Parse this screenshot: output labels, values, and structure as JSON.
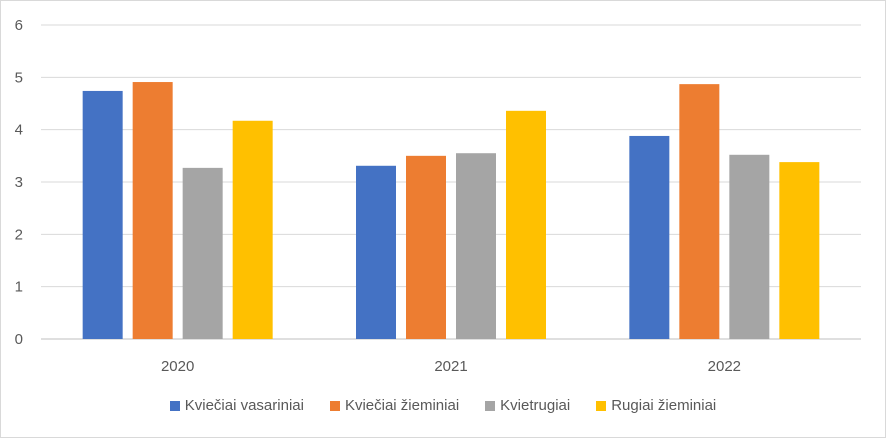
{
  "chart_data": {
    "type": "bar",
    "title": "",
    "xlabel": "",
    "ylabel": "",
    "categories": [
      "2020",
      "2021",
      "2022"
    ],
    "ylim": [
      0,
      6
    ],
    "yticks": [
      "0",
      "1",
      "2",
      "3",
      "4",
      "5",
      "6"
    ],
    "grid": true,
    "legend_position": "bottom",
    "series": [
      {
        "name": "Kviečiai vasariniai",
        "color": "#4472C4",
        "values": [
          4.74,
          3.31,
          3.88
        ]
      },
      {
        "name": "Kviečiai žieminiai",
        "color": "#ED7D31",
        "values": [
          4.91,
          3.5,
          4.87
        ]
      },
      {
        "name": "Kvietrugiai",
        "color": "#A5A5A5",
        "values": [
          3.27,
          3.55,
          3.52
        ]
      },
      {
        "name": "Rugiai žieminiai",
        "color": "#FFC000",
        "values": [
          4.17,
          4.36,
          3.38
        ]
      }
    ]
  }
}
